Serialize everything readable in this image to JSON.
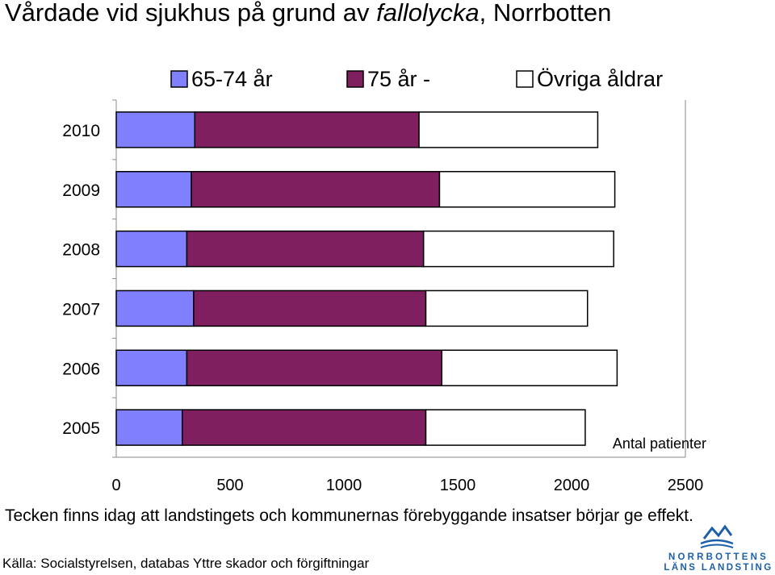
{
  "title": {
    "part1": "Vårdade vid sjukhus på grund av ",
    "italic": "fallolycka",
    "part2": ", Norrbotten"
  },
  "colors": {
    "series_65_74": "#8080FF",
    "series_75_plus": "#7F1F5F",
    "series_other": "#FFFFFF",
    "bar_border": "#000000",
    "axis": "#888888",
    "logo_blue": "#1D5FA8"
  },
  "chart_data": {
    "type": "bar",
    "orientation": "horizontal",
    "stacked": true,
    "categories": [
      "2010",
      "2009",
      "2008",
      "2007",
      "2006",
      "2005"
    ],
    "series": [
      {
        "name": "65-74 år",
        "values": [
          345,
          330,
          310,
          340,
          310,
          290
        ]
      },
      {
        "name": "75 år  -",
        "values": [
          985,
          1090,
          1040,
          1020,
          1120,
          1070
        ]
      },
      {
        "name": "Övriga åldrar",
        "values": [
          785,
          770,
          835,
          710,
          770,
          700
        ]
      }
    ],
    "xlabel": "Antal patienter",
    "ylabel": "",
    "xlim": [
      0,
      2500
    ],
    "x_ticks": [
      "0",
      "500",
      "1000",
      "1500",
      "2000",
      "2500"
    ],
    "legend_position": "top",
    "grid": false
  },
  "caption": "Tecken finns idag att landstingets och kommunernas förebyggande insatser börjar ge effekt.",
  "source": "Källa: Socialstyrelsen, databas Yttre skador och förgiftningar",
  "logo": {
    "line1": "NORRBOTTENS",
    "line2": "LÄNS LANDSTING"
  }
}
